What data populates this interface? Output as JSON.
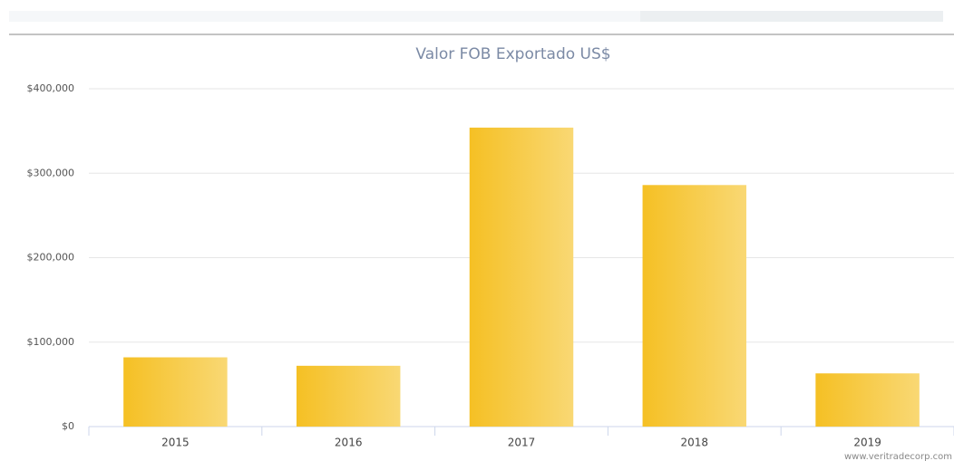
{
  "chart_data": {
    "type": "bar",
    "title": "Valor FOB Exportado US$",
    "categories": [
      "2015",
      "2016",
      "2017",
      "2018",
      "2019"
    ],
    "values": [
      82000,
      72000,
      354000,
      286000,
      63000
    ],
    "gradient": [
      "#f5c024",
      "#f9d874"
    ],
    "ylim": [
      0,
      400000
    ],
    "yticks": [
      {
        "value": 0,
        "label": "$0"
      },
      {
        "value": 100000,
        "label": "$100,000"
      },
      {
        "value": 200000,
        "label": "$200,000"
      },
      {
        "value": 300000,
        "label": "$300,000"
      },
      {
        "value": 400000,
        "label": "$400,000"
      }
    ],
    "grid": true,
    "credits": "www.veritradecorp.com"
  }
}
